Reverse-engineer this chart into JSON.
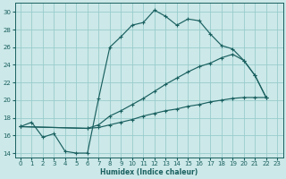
{
  "xlabel": "Humidex (Indice chaleur)",
  "xlim": [
    -0.5,
    23.5
  ],
  "ylim": [
    13.5,
    31
  ],
  "yticks": [
    14,
    16,
    18,
    20,
    22,
    24,
    26,
    28,
    30
  ],
  "xticks": [
    0,
    1,
    2,
    3,
    4,
    5,
    6,
    7,
    8,
    9,
    10,
    11,
    12,
    13,
    14,
    15,
    16,
    17,
    18,
    19,
    20,
    21,
    22,
    23
  ],
  "bg_color": "#cce8e8",
  "grid_color": "#99cccc",
  "line_color": "#1a6060",
  "lines": [
    {
      "x": [
        0,
        1,
        2,
        3,
        4,
        5,
        6,
        7,
        8,
        9,
        10,
        11,
        12,
        13,
        14,
        15,
        16,
        17,
        18,
        19,
        20,
        21,
        22
      ],
      "y": [
        17,
        17.5,
        15.8,
        16.2,
        14.2,
        14.0,
        14.0,
        20.2,
        26.0,
        27.2,
        28.5,
        28.8,
        30.2,
        29.5,
        28.5,
        29.2,
        29.0,
        27.5,
        26.2,
        25.8,
        24.5,
        22.8,
        20.3
      ]
    },
    {
      "x": [
        0,
        6,
        7,
        8,
        9,
        10,
        11,
        12,
        13,
        14,
        15,
        16,
        17,
        18,
        19,
        20,
        21,
        22
      ],
      "y": [
        17,
        16.8,
        17.2,
        18.2,
        18.8,
        19.5,
        20.2,
        21.0,
        21.8,
        22.5,
        23.2,
        23.8,
        24.2,
        24.8,
        25.2,
        24.5,
        22.8,
        20.3
      ]
    },
    {
      "x": [
        0,
        6,
        7,
        8,
        9,
        10,
        11,
        12,
        13,
        14,
        15,
        16,
        17,
        18,
        19,
        20,
        21,
        22
      ],
      "y": [
        17,
        16.8,
        16.9,
        17.2,
        17.5,
        17.8,
        18.2,
        18.5,
        18.8,
        19.0,
        19.3,
        19.5,
        19.8,
        20.0,
        20.2,
        20.3,
        20.3,
        20.3
      ]
    }
  ]
}
